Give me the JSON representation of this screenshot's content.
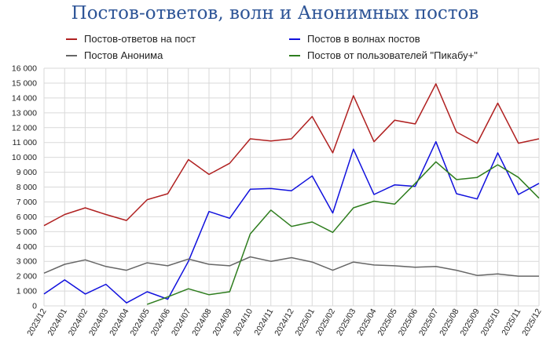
{
  "chart_data": {
    "type": "line",
    "title": "Постов-ответов, волн и Анонимных постов",
    "xlabel": "",
    "ylabel": "",
    "ylim": [
      0,
      16000
    ],
    "yticks": [
      0,
      1000,
      2000,
      3000,
      4000,
      5000,
      6000,
      7000,
      8000,
      9000,
      10000,
      11000,
      12000,
      13000,
      14000,
      15000,
      16000
    ],
    "ytick_labels": [
      "0",
      "1 000",
      "2 000",
      "3 000",
      "4 000",
      "5 000",
      "6 000",
      "7 000",
      "8 000",
      "9 000",
      "10 000",
      "11 000",
      "12 000",
      "13 000",
      "14 000",
      "15 000",
      "16 000"
    ],
    "categories": [
      "2023/12",
      "2024/01",
      "2024/02",
      "2024/03",
      "2024/04",
      "2024/05",
      "2024/06",
      "2024/07",
      "2024/08",
      "2024/09",
      "2024/10",
      "2024/11",
      "2024/12",
      "2025/01",
      "2025/02",
      "2025/03",
      "2025/04",
      "2025/05",
      "2025/06",
      "2025/07",
      "2025/08",
      "2025/09",
      "2025/10",
      "2025/11",
      "2025/12"
    ],
    "grid": true,
    "legend_position": "top",
    "series": [
      {
        "name": "Постов-ответов на пост",
        "color": "#b02020",
        "values": [
          5400,
          6150,
          6600,
          6150,
          5750,
          7150,
          7550,
          9850,
          8850,
          9600,
          11250,
          11100,
          11250,
          12750,
          10300,
          14150,
          11050,
          12500,
          12250,
          14950,
          11700,
          10950,
          13650,
          10950,
          11250
        ]
      },
      {
        "name": "Постов в волнах постов",
        "color": "#1010dd",
        "values": [
          800,
          1750,
          800,
          1450,
          200,
          950,
          450,
          3000,
          6350,
          5900,
          7850,
          7900,
          7750,
          8750,
          6250,
          10550,
          7500,
          8150,
          8050,
          11050,
          7550,
          7200,
          10300,
          7500,
          8250
        ]
      },
      {
        "name": "Постов Анонима",
        "color": "#666666",
        "values": [
          2200,
          2800,
          3100,
          2650,
          2400,
          2900,
          2700,
          3150,
          2800,
          2700,
          3300,
          3000,
          3250,
          2950,
          2400,
          2950,
          2750,
          2700,
          2600,
          2650,
          2400,
          2050,
          2150,
          2000,
          2000
        ]
      },
      {
        "name": "Постов от пользователей \"Пикабу+\"",
        "color": "#2e7d1e",
        "values": [
          null,
          null,
          null,
          null,
          null,
          100,
          600,
          1150,
          750,
          950,
          4850,
          6450,
          5350,
          5650,
          4950,
          6600,
          7050,
          6850,
          8250,
          9700,
          8500,
          8650,
          9500,
          8650,
          7250
        ]
      }
    ]
  },
  "legend": {
    "items": [
      {
        "label": "Постов-ответов на пост",
        "color": "#b02020"
      },
      {
        "label": "Постов в волнах постов",
        "color": "#1010dd"
      },
      {
        "label": "Постов Анонима",
        "color": "#666666"
      },
      {
        "label": "Постов от пользователей \"Пикабу+\"",
        "color": "#2e7d1e"
      }
    ]
  }
}
